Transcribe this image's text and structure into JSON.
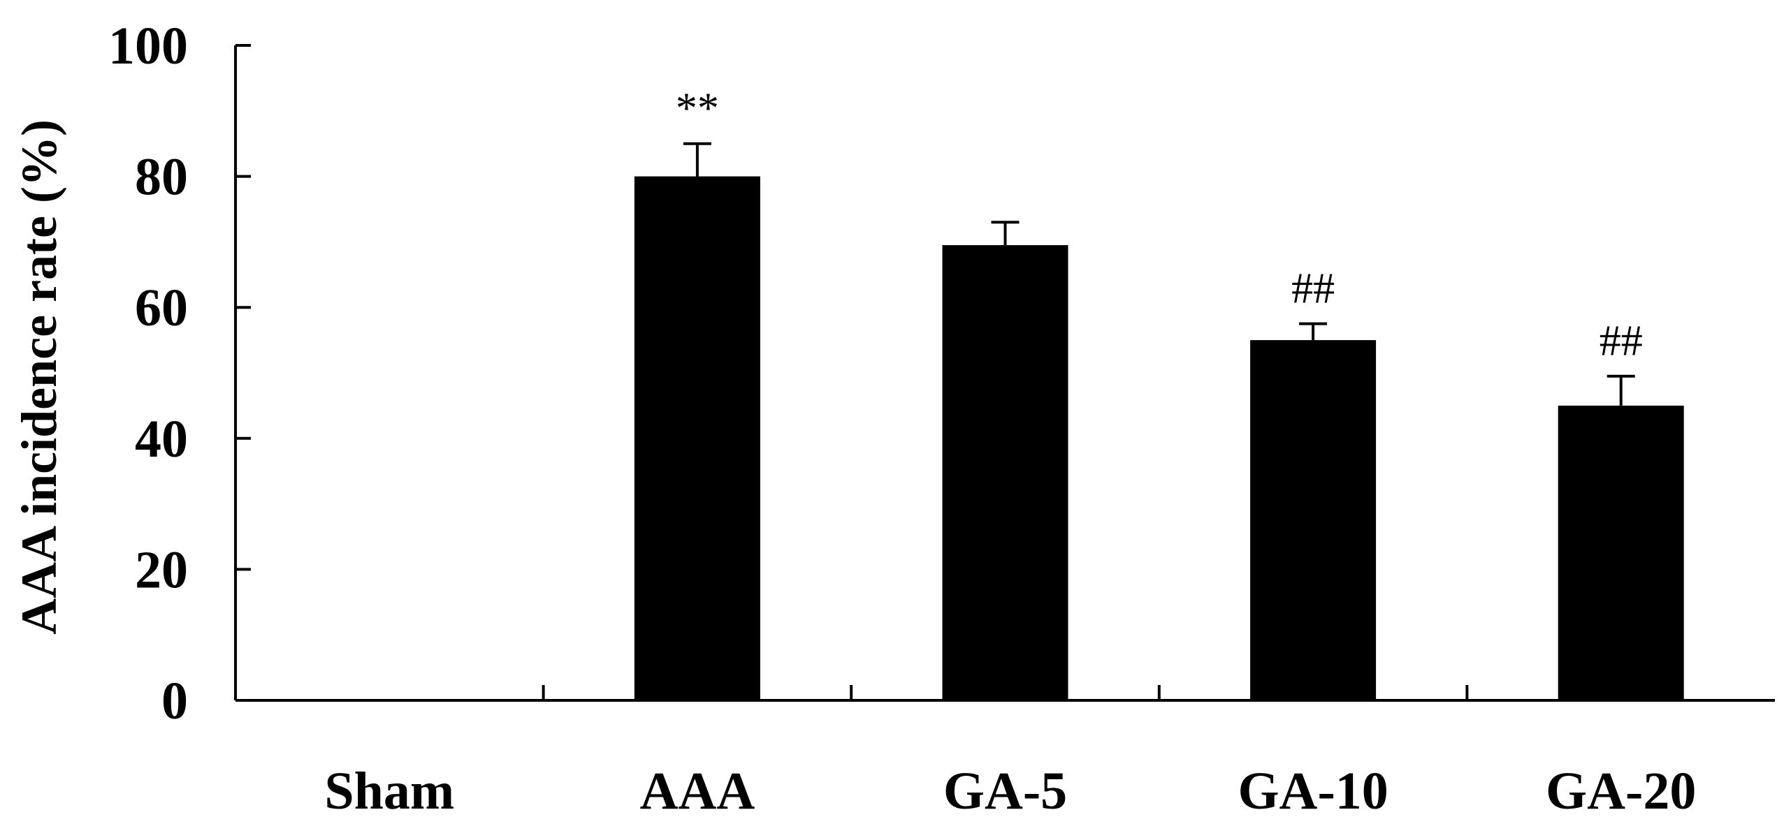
{
  "chart_data": {
    "type": "bar",
    "categories": [
      "Sham",
      "AAA",
      "GA-5",
      "GA-10",
      "GA-20"
    ],
    "values": [
      0,
      80,
      69.5,
      55,
      45
    ],
    "errors": [
      0,
      5,
      3.5,
      2.5,
      4.5
    ],
    "annotations": [
      "",
      "**",
      "",
      "##",
      "##"
    ],
    "title": "",
    "xlabel": "",
    "ylabel": "AAA incidence rate (%)",
    "ylim": [
      0,
      100
    ],
    "yticks": [
      0,
      20,
      40,
      60,
      80,
      100
    ],
    "grid": false,
    "bar_color": "#000000"
  }
}
